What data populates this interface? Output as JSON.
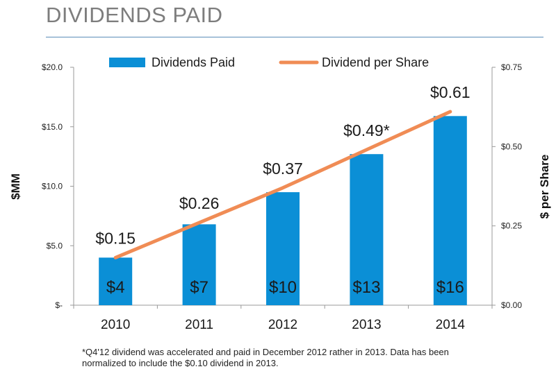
{
  "slide": {
    "title": "DIVIDENDS PAID",
    "footnote": "*Q4'12 dividend was accelerated and paid in December 2012 rather in 2013. Data has been normalized to include the $0.10 dividend in 2013."
  },
  "chart_data": {
    "type": "bar",
    "categories": [
      "2010",
      "2011",
      "2012",
      "2013",
      "2014"
    ],
    "legend_position": "top",
    "grid": false,
    "series": [
      {
        "name": "Dividends Paid",
        "chart_type": "bar",
        "axis": "left",
        "color": "#0b8fd6",
        "values": [
          4.0,
          6.8,
          9.5,
          12.7,
          15.9
        ],
        "labels": [
          "$4",
          "$7",
          "$10",
          "$13",
          "$16"
        ]
      },
      {
        "name": "Dividend per Share",
        "chart_type": "line",
        "axis": "right",
        "color": "#f08c55",
        "values": [
          0.15,
          0.26,
          0.37,
          0.49,
          0.61
        ],
        "labels": [
          "$0.15",
          "$0.26",
          "$0.37",
          "$0.49*",
          "$0.61"
        ]
      }
    ],
    "y_left": {
      "label": "$MM",
      "range": [
        0,
        20
      ],
      "ticks": [
        0,
        5,
        10,
        15,
        20
      ],
      "tick_labels": [
        "$-",
        "$5.0",
        "$10.0",
        "$15.0",
        "$20.0"
      ]
    },
    "y_right": {
      "label": "$ per Share",
      "range": [
        0,
        0.75
      ],
      "ticks": [
        0,
        0.25,
        0.5,
        0.75
      ],
      "tick_labels": [
        "$0.00",
        "$0.25",
        "$0.50",
        "$0.75"
      ]
    }
  }
}
